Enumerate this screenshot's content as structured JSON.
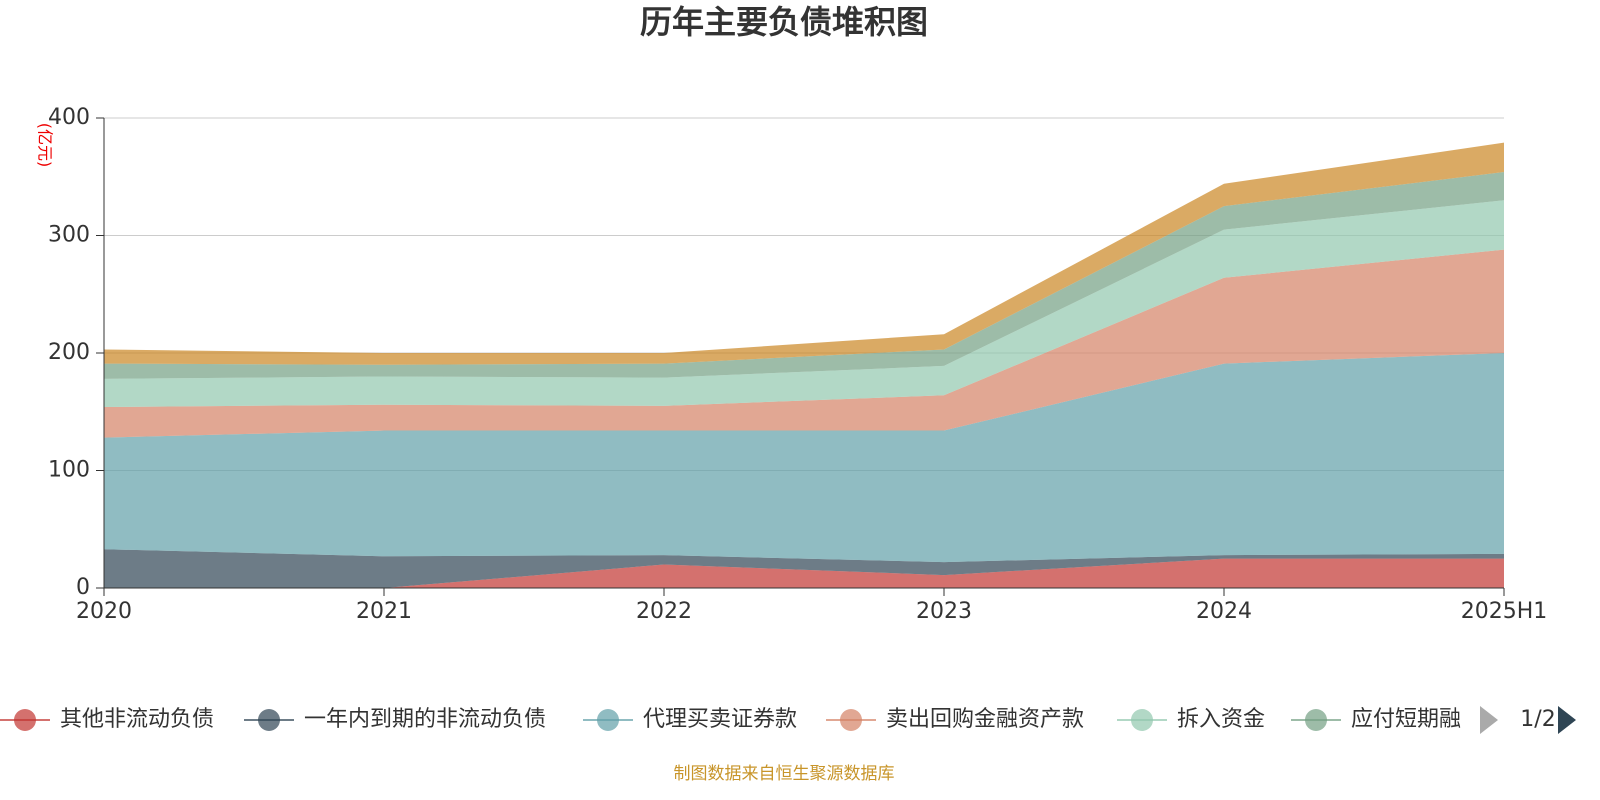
{
  "chart_data": {
    "type": "stacked-area",
    "title": "历年主要负债堆积图",
    "y_unit": "(亿元)",
    "categories": [
      "2020",
      "2021",
      "2022",
      "2023",
      "2024",
      "2025H1"
    ],
    "ylim": [
      0,
      400
    ],
    "yticks": [
      0,
      100,
      200,
      300,
      400
    ],
    "grid": true,
    "opacity": 0.7,
    "series": [
      {
        "name": "其他非流动负债",
        "color": "#c23531",
        "values": [
          0,
          0,
          20,
          11,
          25,
          25
        ]
      },
      {
        "name": "一年内到期的非流动负债",
        "color": "#2f4554",
        "values": [
          33,
          27,
          8,
          11,
          3,
          4
        ]
      },
      {
        "name": "代理买卖证券款",
        "color": "#61a0a8",
        "values": [
          95,
          107,
          106,
          112,
          163,
          171
        ]
      },
      {
        "name": "卖出回购金融资产款",
        "color": "#d48265",
        "values": [
          26,
          22,
          21,
          30,
          73,
          88
        ]
      },
      {
        "name": "拆入资金",
        "color": "#91c7ae",
        "values": [
          24,
          24,
          24,
          25,
          41,
          42
        ]
      },
      {
        "name": "应付短期融",
        "color": "#749f83",
        "values": [
          13,
          10,
          12,
          14,
          20,
          24
        ]
      },
      {
        "color": "#ca8622",
        "values": [
          12,
          10,
          9,
          13,
          19,
          25
        ]
      }
    ],
    "legend_page": "1/2",
    "source": "制图数据来自恒生聚源数据库"
  }
}
